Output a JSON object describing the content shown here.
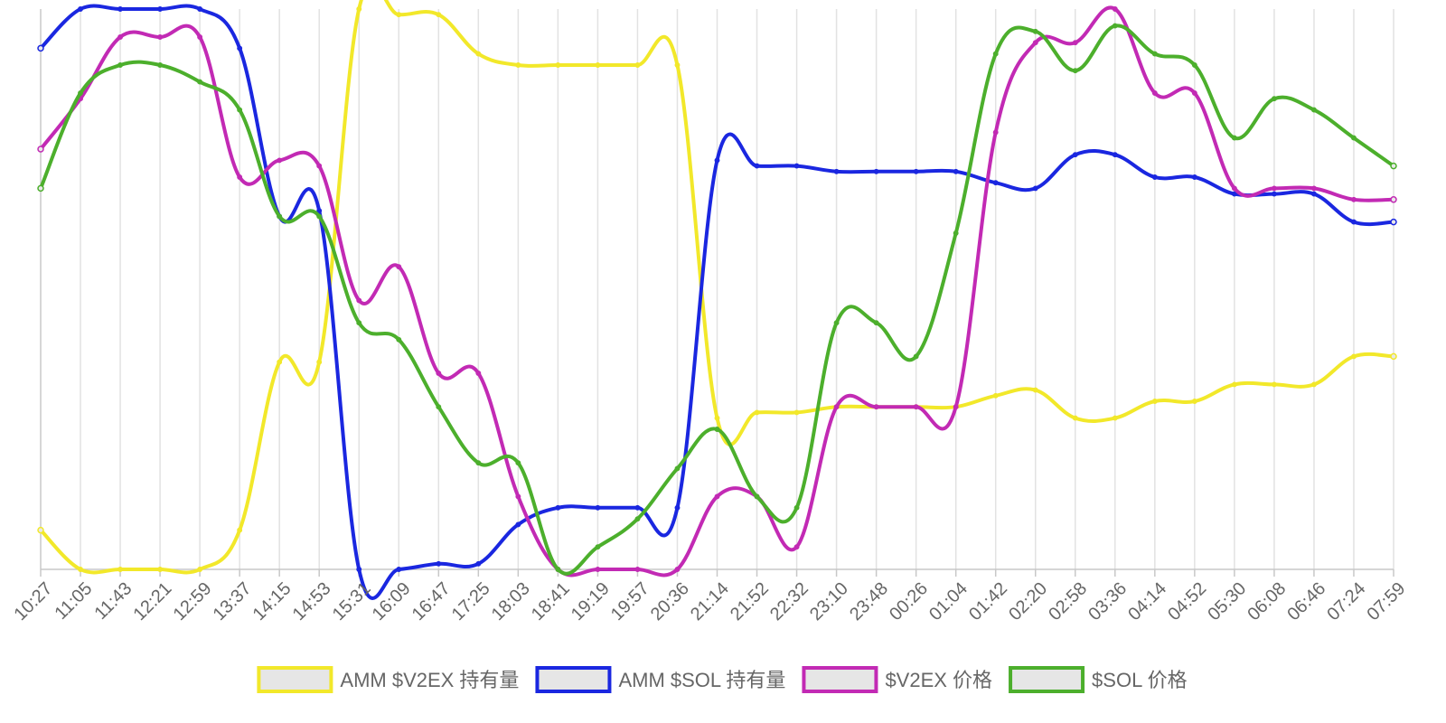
{
  "chart_data": {
    "type": "line",
    "x": [
      "10:27",
      "11:05",
      "11:43",
      "12:21",
      "12:59",
      "13:37",
      "14:15",
      "14:53",
      "15:31",
      "16:09",
      "16:47",
      "17:25",
      "18:03",
      "18:41",
      "19:19",
      "19:57",
      "20:36",
      "21:14",
      "21:52",
      "22:32",
      "23:10",
      "23:48",
      "00:26",
      "01:04",
      "01:42",
      "02:20",
      "02:58",
      "03:36",
      "04:14",
      "04:52",
      "05:30",
      "06:08",
      "06:46",
      "07:24",
      "07:59"
    ],
    "ylim": [
      0,
      100
    ],
    "grid": "vertical",
    "legend_position": "bottom",
    "series": [
      {
        "name": "AMM $V2EX 持有量",
        "color": "#f2e82a",
        "values": [
          7,
          0,
          0,
          0,
          0,
          7,
          37,
          37,
          100,
          99,
          99,
          92,
          90,
          90,
          90,
          90,
          90,
          27,
          28,
          28,
          29,
          29,
          29,
          29,
          31,
          32,
          27,
          27,
          30,
          30,
          33,
          33,
          33,
          38,
          38
        ]
      },
      {
        "name": "AMM $SOL 持有量",
        "color": "#1a27e0",
        "values": [
          93,
          100,
          100,
          100,
          100,
          93,
          63,
          64,
          0,
          0,
          1,
          1,
          8,
          11,
          11,
          11,
          11,
          73,
          72,
          72,
          71,
          71,
          71,
          71,
          69,
          68,
          74,
          74,
          70,
          70,
          67,
          67,
          67,
          62,
          62
        ]
      },
      {
        "name": "$V2EX 价格",
        "color": "#c22ab4",
        "values": [
          75,
          84,
          95,
          95,
          95,
          70,
          73,
          72,
          48,
          54,
          35,
          35,
          13,
          0,
          0,
          0,
          0,
          13,
          13,
          4,
          29,
          29,
          29,
          29,
          78,
          94,
          94,
          100,
          85,
          85,
          68,
          68,
          68,
          66,
          66
        ]
      },
      {
        "name": "$SOL 价格",
        "color": "#4caf2c",
        "values": [
          68,
          85,
          90,
          90,
          87,
          82,
          63,
          63,
          44,
          41,
          29,
          19,
          19,
          0,
          4,
          9,
          18,
          25,
          13,
          11,
          44,
          44,
          38,
          60,
          92,
          96,
          89,
          97,
          92,
          90,
          77,
          84,
          82,
          77,
          72
        ]
      }
    ]
  }
}
